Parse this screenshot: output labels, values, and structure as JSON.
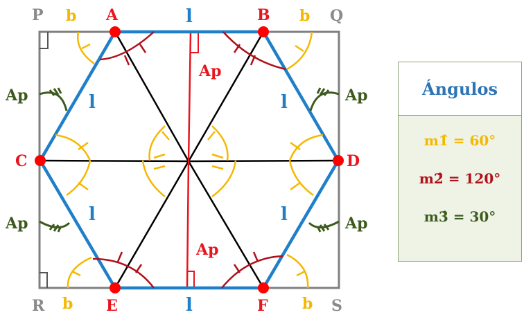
{
  "labels": {
    "P": "P",
    "Q": "Q",
    "R": "R",
    "S": "S",
    "A": "A",
    "B": "B",
    "C": "C",
    "D": "D",
    "E": "E",
    "F": "F",
    "side_top": "l",
    "side_bottom": "l",
    "side_ul": "l",
    "side_ur": "l",
    "side_ll": "l",
    "side_lr": "l",
    "b_tl": "b",
    "b_tr": "b",
    "b_bl": "b",
    "b_br": "b",
    "ap_top": "Ap",
    "ap_bottom": "Ap",
    "ap_left_top": "Ap",
    "ap_left_bottom": "Ap",
    "ap_right_top": "Ap",
    "ap_right_bottom": "Ap"
  },
  "panel": {
    "title": "Ángulos",
    "angle1": "m1̂ = 60°",
    "angle2": "m2̂ = 120°",
    "angle3": "m3̂ = 30°"
  },
  "colors": {
    "hexagon": "#1f7fc9",
    "square": "#7f7f7f",
    "vertex": "#ff0000",
    "apothem": "#e8141e",
    "yellow": "#f5b800",
    "darkred": "#b0101a",
    "green": "#3d5a1e",
    "blue_label": "#1f7fc9"
  }
}
